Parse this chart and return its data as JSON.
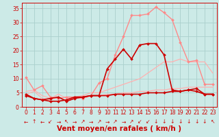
{
  "background_color": "#cceae7",
  "grid_color": "#aacfcc",
  "xlabel": "Vent moyen/en rafales ( km/h )",
  "xlabel_color": "#cc0000",
  "xlabel_fontsize": 7.5,
  "ylabel_ticks": [
    0,
    5,
    10,
    15,
    20,
    25,
    30,
    35
  ],
  "xlim": [
    -0.5,
    23.5
  ],
  "ylim": [
    0,
    37
  ],
  "x_ticks": [
    0,
    1,
    2,
    3,
    4,
    5,
    6,
    7,
    8,
    9,
    10,
    11,
    12,
    13,
    14,
    15,
    16,
    17,
    18,
    19,
    20,
    21,
    22,
    23
  ],
  "lines": [
    {
      "x": [
        0,
        1,
        2,
        3,
        4,
        5,
        6,
        7,
        8,
        9,
        10,
        11,
        12,
        13,
        14,
        15,
        16,
        17,
        18,
        19,
        20,
        21,
        22,
        23
      ],
      "y": [
        4.5,
        5.5,
        3.0,
        2.5,
        3.5,
        2.0,
        3.0,
        3.5,
        4.0,
        4.0,
        4.5,
        4.5,
        5.0,
        5.0,
        5.5,
        5.5,
        6.0,
        6.0,
        6.5,
        6.5,
        7.0,
        7.0,
        7.0,
        7.0
      ],
      "color": "#ffb0b0",
      "lw": 0.9,
      "marker": null
    },
    {
      "x": [
        0,
        1,
        2,
        3,
        4,
        5,
        6,
        7,
        8,
        9,
        10,
        11,
        12,
        13,
        14,
        15,
        16,
        17,
        18,
        19,
        20,
        21,
        22,
        23
      ],
      "y": [
        5.5,
        6.0,
        4.0,
        3.0,
        4.5,
        3.0,
        3.5,
        4.0,
        5.0,
        5.0,
        6.0,
        7.0,
        8.0,
        9.0,
        10.0,
        12.0,
        14.0,
        16.0,
        16.0,
        17.0,
        16.0,
        16.0,
        16.0,
        12.0
      ],
      "color": "#ffb0b0",
      "lw": 0.9,
      "marker": null
    },
    {
      "x": [
        0,
        1,
        2,
        3,
        4,
        5,
        6,
        7,
        8,
        9,
        10,
        11,
        12,
        13,
        14,
        15,
        16,
        17,
        18,
        19,
        20,
        21,
        22,
        23
      ],
      "y": [
        10.5,
        6.0,
        7.5,
        3.5,
        3.0,
        3.5,
        3.5,
        3.0,
        4.0,
        8.5,
        10.0,
        18.5,
        25.0,
        32.5,
        32.5,
        33.0,
        35.5,
        33.5,
        31.0,
        23.0,
        16.0,
        16.5,
        8.0,
        8.0
      ],
      "color": "#ff8888",
      "lw": 1.0,
      "marker": "D",
      "marker_size": 2.0
    },
    {
      "x": [
        0,
        1,
        2,
        3,
        4,
        5,
        6,
        7,
        8,
        9,
        10,
        11,
        12,
        13,
        14,
        15,
        16,
        17,
        18,
        19,
        20,
        21,
        22,
        23
      ],
      "y": [
        4.5,
        3.0,
        2.5,
        3.0,
        3.5,
        2.0,
        3.0,
        3.5,
        4.0,
        4.0,
        13.5,
        17.0,
        20.5,
        17.0,
        22.0,
        22.5,
        22.5,
        18.5,
        6.0,
        5.5,
        6.0,
        6.5,
        4.5,
        4.5
      ],
      "color": "#cc0000",
      "lw": 1.2,
      "marker": "D",
      "marker_size": 2.0
    },
    {
      "x": [
        0,
        1,
        2,
        3,
        4,
        5,
        6,
        7,
        8,
        9,
        10,
        11,
        12,
        13,
        14,
        15,
        16,
        17,
        18,
        19,
        20,
        21,
        22,
        23
      ],
      "y": [
        4.0,
        3.0,
        2.5,
        2.0,
        2.0,
        2.5,
        3.5,
        3.5,
        4.0,
        4.0,
        4.0,
        4.5,
        4.5,
        4.5,
        4.5,
        5.0,
        5.0,
        5.0,
        5.5,
        5.5,
        6.0,
        5.5,
        4.5,
        4.5
      ],
      "color": "#cc0000",
      "lw": 1.2,
      "marker": "D",
      "marker_size": 2.0
    }
  ],
  "tick_color": "#cc0000",
  "tick_fontsize": 5.5,
  "arrows": [
    "←",
    "↑",
    "←",
    "↙",
    "→",
    "↖",
    "→",
    "↗",
    "→",
    "↗",
    "→",
    "↗",
    "→",
    "↗",
    "↙",
    "↙",
    "↓",
    "↓",
    "↓",
    "↓",
    "↓",
    "↓",
    "↓",
    "↖"
  ],
  "arrow_fontsize": 5.5
}
